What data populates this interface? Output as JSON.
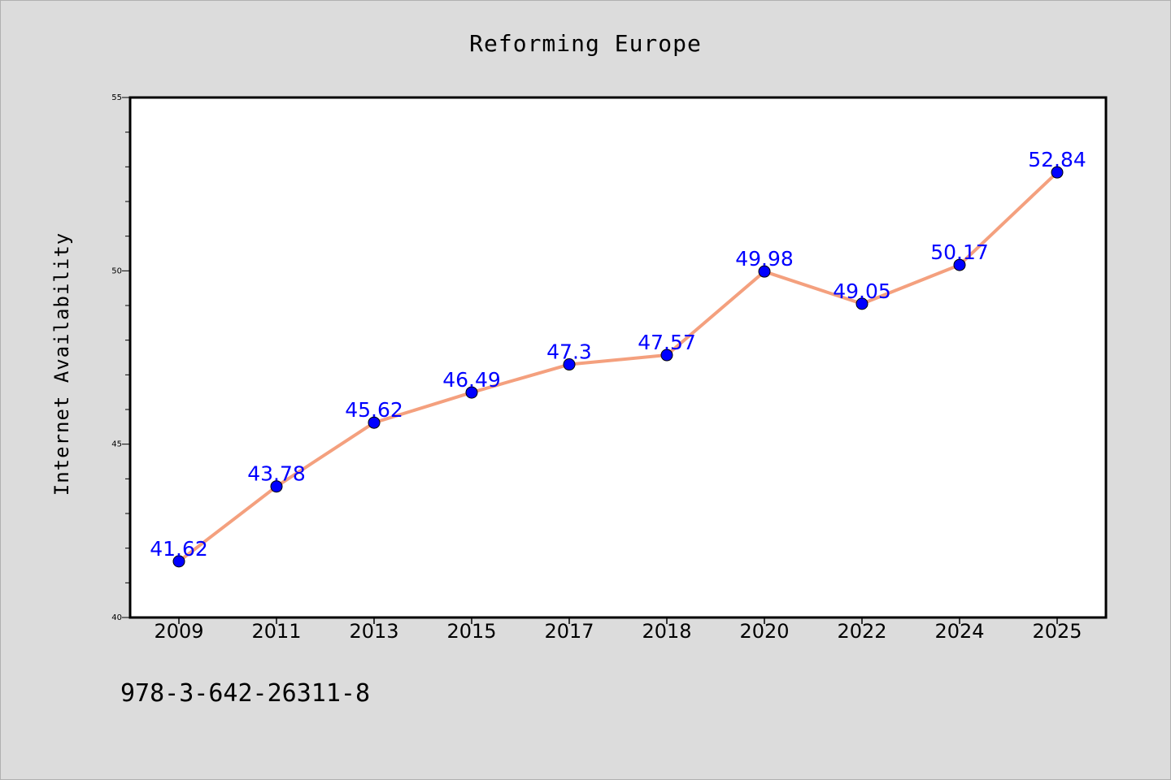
{
  "chart_data": {
    "type": "line",
    "title": "Reforming Europe",
    "xlabel": "",
    "ylabel": "Internet Availability",
    "categories": [
      "2009",
      "2011",
      "2013",
      "2015",
      "2017",
      "2018",
      "2020",
      "2022",
      "2024",
      "2025"
    ],
    "series": [
      {
        "values": [
          41.62,
          43.78,
          45.62,
          46.49,
          47.3,
          47.57,
          49.98,
          49.05,
          50.17,
          52.84
        ],
        "labels": [
          "41.62",
          "43.78",
          "45.62",
          "46.49",
          "47.3",
          "47.57",
          "49.98",
          "49.05",
          "50.17",
          "52.84"
        ]
      }
    ],
    "ylim": [
      40,
      55
    ],
    "yticks": [
      "40",
      "45",
      "50",
      "55"
    ],
    "grid": false,
    "legend": "none",
    "colors": {
      "line": "#f4a07e",
      "marker": "#0000ff",
      "label": "#0000ff",
      "background": "#dcdcdc",
      "plot_background": "#ffffff"
    }
  },
  "footer": {
    "text": "978-3-642-26311-8"
  }
}
